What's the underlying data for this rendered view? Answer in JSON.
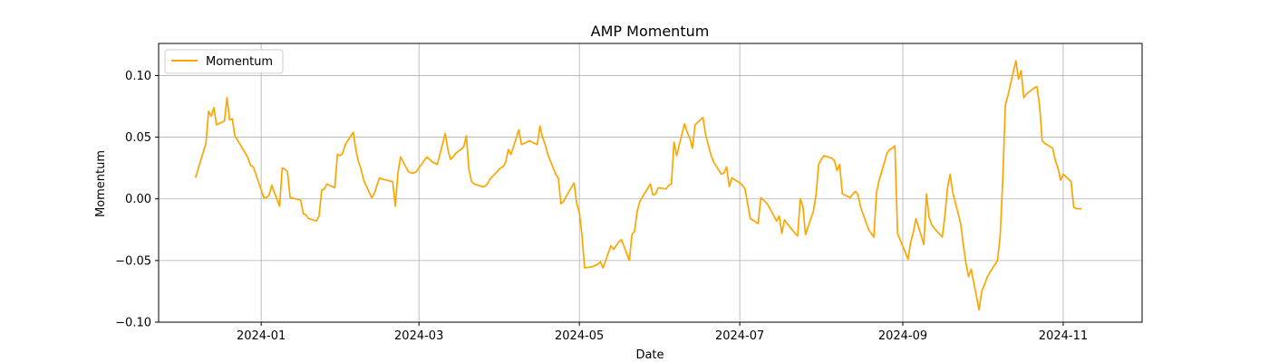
{
  "chart_data": {
    "type": "line",
    "title": "AMP Momentum",
    "xlabel": "Date",
    "ylabel": "Momentum",
    "xlim": [
      "2023-11-23",
      "2024-12-01"
    ],
    "ylim": [
      -0.1,
      0.126
    ],
    "x_ticks": [
      {
        "date": "2024-01-01",
        "label": "2024-01"
      },
      {
        "date": "2024-03-01",
        "label": "2024-03"
      },
      {
        "date": "2024-05-01",
        "label": "2024-05"
      },
      {
        "date": "2024-07-01",
        "label": "2024-07"
      },
      {
        "date": "2024-09-01",
        "label": "2024-09"
      },
      {
        "date": "2024-11-01",
        "label": "2024-11"
      }
    ],
    "y_ticks": [
      {
        "value": 0.1,
        "label": "0.10"
      },
      {
        "value": 0.05,
        "label": "0.05"
      },
      {
        "value": 0.0,
        "label": "0.00"
      },
      {
        "value": -0.05,
        "label": "−0.05"
      },
      {
        "value": -0.1,
        "label": "−0.10"
      }
    ],
    "grid": true,
    "legend_position": "top-left",
    "series": [
      {
        "name": "Momentum",
        "color": "#FFA500",
        "points": [
          [
            "2023-12-07",
            0.017
          ],
          [
            "2023-12-11",
            0.045
          ],
          [
            "2023-12-12",
            0.071
          ],
          [
            "2023-12-13",
            0.067
          ],
          [
            "2023-12-14",
            0.074
          ],
          [
            "2023-12-15",
            0.06
          ],
          [
            "2023-12-18",
            0.063
          ],
          [
            "2023-12-19",
            0.082
          ],
          [
            "2023-12-20",
            0.064
          ],
          [
            "2023-12-21",
            0.065
          ],
          [
            "2023-12-22",
            0.051
          ],
          [
            "2023-12-26",
            0.037
          ],
          [
            "2023-12-27",
            0.033
          ],
          [
            "2023-12-28",
            0.027
          ],
          [
            "2023-12-29",
            0.026
          ],
          [
            "2024-01-02",
            0.001
          ],
          [
            "2024-01-03",
            0.001
          ],
          [
            "2024-01-04",
            0.003
          ],
          [
            "2024-01-05",
            0.011
          ],
          [
            "2024-01-08",
            -0.006
          ],
          [
            "2024-01-09",
            0.025
          ],
          [
            "2024-01-10",
            0.024
          ],
          [
            "2024-01-11",
            0.022
          ],
          [
            "2024-01-12",
            0.001
          ],
          [
            "2024-01-16",
            -0.001
          ],
          [
            "2024-01-17",
            -0.012
          ],
          [
            "2024-01-18",
            -0.013
          ],
          [
            "2024-01-19",
            -0.016
          ],
          [
            "2024-01-22",
            -0.018
          ],
          [
            "2024-01-23",
            -0.014
          ],
          [
            "2024-01-24",
            0.007
          ],
          [
            "2024-01-25",
            0.008
          ],
          [
            "2024-01-26",
            0.012
          ],
          [
            "2024-01-29",
            0.009
          ],
          [
            "2024-01-30",
            0.036
          ],
          [
            "2024-01-31",
            0.035
          ],
          [
            "2024-02-01",
            0.037
          ],
          [
            "2024-02-02",
            0.044
          ],
          [
            "2024-02-05",
            0.054
          ],
          [
            "2024-02-06",
            0.04
          ],
          [
            "2024-02-07",
            0.03
          ],
          [
            "2024-02-08",
            0.024
          ],
          [
            "2024-02-09",
            0.015
          ],
          [
            "2024-02-12",
            0.001
          ],
          [
            "2024-02-13",
            0.004
          ],
          [
            "2024-02-14",
            0.011
          ],
          [
            "2024-02-15",
            0.017
          ],
          [
            "2024-02-16",
            0.016
          ],
          [
            "2024-02-20",
            0.014
          ],
          [
            "2024-02-21",
            -0.006
          ],
          [
            "2024-02-22",
            0.021
          ],
          [
            "2024-02-23",
            0.034
          ],
          [
            "2024-02-26",
            0.022
          ],
          [
            "2024-02-27",
            0.021
          ],
          [
            "2024-02-28",
            0.021
          ],
          [
            "2024-02-29",
            0.022
          ],
          [
            "2024-03-01",
            0.025
          ],
          [
            "2024-03-04",
            0.034
          ],
          [
            "2024-03-05",
            0.032
          ],
          [
            "2024-03-06",
            0.03
          ],
          [
            "2024-03-07",
            0.029
          ],
          [
            "2024-03-08",
            0.028
          ],
          [
            "2024-03-11",
            0.053
          ],
          [
            "2024-03-12",
            0.04
          ],
          [
            "2024-03-13",
            0.032
          ],
          [
            "2024-03-14",
            0.034
          ],
          [
            "2024-03-15",
            0.037
          ],
          [
            "2024-03-18",
            0.042
          ],
          [
            "2024-03-19",
            0.051
          ],
          [
            "2024-03-20",
            0.024
          ],
          [
            "2024-03-21",
            0.014
          ],
          [
            "2024-03-22",
            0.012
          ],
          [
            "2024-03-25",
            0.01
          ],
          [
            "2024-03-26",
            0.01
          ],
          [
            "2024-03-27",
            0.012
          ],
          [
            "2024-03-28",
            0.016
          ],
          [
            "2024-04-01",
            0.025
          ],
          [
            "2024-04-02",
            0.026
          ],
          [
            "2024-04-03",
            0.03
          ],
          [
            "2024-04-04",
            0.04
          ],
          [
            "2024-04-05",
            0.036
          ],
          [
            "2024-04-08",
            0.056
          ],
          [
            "2024-04-09",
            0.044
          ],
          [
            "2024-04-10",
            0.045
          ],
          [
            "2024-04-11",
            0.046
          ],
          [
            "2024-04-12",
            0.047
          ],
          [
            "2024-04-15",
            0.044
          ],
          [
            "2024-04-16",
            0.059
          ],
          [
            "2024-04-17",
            0.05
          ],
          [
            "2024-04-18",
            0.044
          ],
          [
            "2024-04-19",
            0.036
          ],
          [
            "2024-04-22",
            0.02
          ],
          [
            "2024-04-23",
            0.017
          ],
          [
            "2024-04-24",
            -0.004
          ],
          [
            "2024-04-25",
            -0.002
          ],
          [
            "2024-04-26",
            0.002
          ],
          [
            "2024-04-29",
            0.013
          ],
          [
            "2024-04-30",
            -0.004
          ],
          [
            "2024-05-01",
            -0.011
          ],
          [
            "2024-05-02",
            -0.03
          ],
          [
            "2024-05-03",
            -0.056
          ],
          [
            "2024-05-06",
            -0.055
          ],
          [
            "2024-05-07",
            -0.054
          ],
          [
            "2024-05-08",
            -0.053
          ],
          [
            "2024-05-09",
            -0.051
          ],
          [
            "2024-05-10",
            -0.056
          ],
          [
            "2024-05-13",
            -0.038
          ],
          [
            "2024-05-14",
            -0.041
          ],
          [
            "2024-05-15",
            -0.038
          ],
          [
            "2024-05-16",
            -0.035
          ],
          [
            "2024-05-17",
            -0.033
          ],
          [
            "2024-05-20",
            -0.05
          ],
          [
            "2024-05-21",
            -0.029
          ],
          [
            "2024-05-22",
            -0.026
          ],
          [
            "2024-05-23",
            -0.01
          ],
          [
            "2024-05-24",
            -0.002
          ],
          [
            "2024-05-28",
            0.012
          ],
          [
            "2024-05-29",
            0.003
          ],
          [
            "2024-05-30",
            0.004
          ],
          [
            "2024-05-31",
            0.009
          ],
          [
            "2024-06-03",
            0.008
          ],
          [
            "2024-06-04",
            0.011
          ],
          [
            "2024-06-05",
            0.012
          ],
          [
            "2024-06-06",
            0.046
          ],
          [
            "2024-06-07",
            0.035
          ],
          [
            "2024-06-10",
            0.061
          ],
          [
            "2024-06-11",
            0.054
          ],
          [
            "2024-06-12",
            0.049
          ],
          [
            "2024-06-13",
            0.041
          ],
          [
            "2024-06-14",
            0.06
          ],
          [
            "2024-06-17",
            0.066
          ],
          [
            "2024-06-18",
            0.052
          ],
          [
            "2024-06-20",
            0.036
          ],
          [
            "2024-06-21",
            0.03
          ],
          [
            "2024-06-24",
            0.02
          ],
          [
            "2024-06-25",
            0.021
          ],
          [
            "2024-06-26",
            0.026
          ],
          [
            "2024-06-27",
            0.01
          ],
          [
            "2024-06-28",
            0.017
          ],
          [
            "2024-07-01",
            0.013
          ],
          [
            "2024-07-02",
            0.011
          ],
          [
            "2024-07-03",
            0.008
          ],
          [
            "2024-07-05",
            -0.016
          ],
          [
            "2024-07-08",
            -0.02
          ],
          [
            "2024-07-09",
            0.001
          ],
          [
            "2024-07-10",
            -0.001
          ],
          [
            "2024-07-11",
            -0.003
          ],
          [
            "2024-07-12",
            -0.006
          ],
          [
            "2024-07-15",
            -0.018
          ],
          [
            "2024-07-16",
            -0.014
          ],
          [
            "2024-07-17",
            -0.028
          ],
          [
            "2024-07-18",
            -0.017
          ],
          [
            "2024-07-19",
            -0.02
          ],
          [
            "2024-07-22",
            -0.028
          ],
          [
            "2024-07-23",
            -0.03
          ],
          [
            "2024-07-24",
            0.0
          ],
          [
            "2024-07-25",
            -0.006
          ],
          [
            "2024-07-26",
            -0.029
          ],
          [
            "2024-07-29",
            -0.01
          ],
          [
            "2024-07-30",
            0.003
          ],
          [
            "2024-07-31",
            0.028
          ],
          [
            "2024-08-01",
            0.032
          ],
          [
            "2024-08-02",
            0.035
          ],
          [
            "2024-08-05",
            0.033
          ],
          [
            "2024-08-06",
            0.031
          ],
          [
            "2024-08-07",
            0.023
          ],
          [
            "2024-08-08",
            0.028
          ],
          [
            "2024-08-09",
            0.004
          ],
          [
            "2024-08-12",
            0.001
          ],
          [
            "2024-08-13",
            0.004
          ],
          [
            "2024-08-14",
            0.006
          ],
          [
            "2024-08-15",
            0.003
          ],
          [
            "2024-08-16",
            -0.007
          ],
          [
            "2024-08-19",
            -0.025
          ],
          [
            "2024-08-20",
            -0.028
          ],
          [
            "2024-08-21",
            -0.031
          ],
          [
            "2024-08-22",
            0.005
          ],
          [
            "2024-08-23",
            0.015
          ],
          [
            "2024-08-26",
            0.037
          ],
          [
            "2024-08-27",
            0.04
          ],
          [
            "2024-08-28",
            0.041
          ],
          [
            "2024-08-29",
            0.043
          ],
          [
            "2024-08-30",
            -0.028
          ],
          [
            "2024-09-03",
            -0.049
          ],
          [
            "2024-09-04",
            -0.035
          ],
          [
            "2024-09-05",
            -0.027
          ],
          [
            "2024-09-06",
            -0.016
          ],
          [
            "2024-09-09",
            -0.037
          ],
          [
            "2024-09-10",
            0.004
          ],
          [
            "2024-09-11",
            -0.015
          ],
          [
            "2024-09-12",
            -0.021
          ],
          [
            "2024-09-13",
            -0.024
          ],
          [
            "2024-09-16",
            -0.031
          ],
          [
            "2024-09-17",
            -0.014
          ],
          [
            "2024-09-18",
            0.009
          ],
          [
            "2024-09-19",
            0.02
          ],
          [
            "2024-09-20",
            0.005
          ],
          [
            "2024-09-23",
            -0.02
          ],
          [
            "2024-09-24",
            -0.037
          ],
          [
            "2024-09-25",
            -0.052
          ],
          [
            "2024-09-26",
            -0.063
          ],
          [
            "2024-09-27",
            -0.057
          ],
          [
            "2024-09-30",
            -0.09
          ],
          [
            "2024-10-01",
            -0.075
          ],
          [
            "2024-10-02",
            -0.07
          ],
          [
            "2024-10-03",
            -0.064
          ],
          [
            "2024-10-04",
            -0.06
          ],
          [
            "2024-10-07",
            -0.05
          ],
          [
            "2024-10-08",
            -0.031
          ],
          [
            "2024-10-09",
            0.015
          ],
          [
            "2024-10-10",
            0.076
          ],
          [
            "2024-10-11",
            0.084
          ],
          [
            "2024-10-14",
            0.112
          ],
          [
            "2024-10-15",
            0.097
          ],
          [
            "2024-10-16",
            0.104
          ],
          [
            "2024-10-17",
            0.082
          ],
          [
            "2024-10-18",
            0.085
          ],
          [
            "2024-10-21",
            0.09
          ],
          [
            "2024-10-22",
            0.091
          ],
          [
            "2024-10-23",
            0.076
          ],
          [
            "2024-10-24",
            0.047
          ],
          [
            "2024-10-25",
            0.045
          ],
          [
            "2024-10-28",
            0.041
          ],
          [
            "2024-10-29",
            0.031
          ],
          [
            "2024-10-30",
            0.025
          ],
          [
            "2024-10-31",
            0.015
          ],
          [
            "2024-11-01",
            0.02
          ],
          [
            "2024-11-04",
            0.014
          ],
          [
            "2024-11-05",
            -0.007
          ],
          [
            "2024-11-06",
            -0.008
          ],
          [
            "2024-11-07",
            -0.008
          ],
          [
            "2024-11-08",
            -0.008
          ]
        ]
      }
    ]
  }
}
